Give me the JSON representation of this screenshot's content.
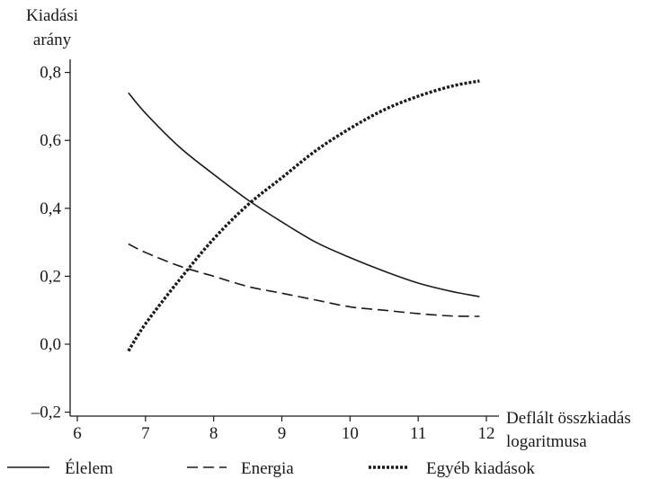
{
  "chart_data": {
    "type": "line",
    "ylabel_lines": [
      "Kiadási",
      "arány"
    ],
    "xlabel_lines": [
      "Deflált összkiadás",
      "logaritmusa"
    ],
    "xlim": [
      6,
      12
    ],
    "ylim": [
      -0.2,
      0.8
    ],
    "x_ticks": [
      6,
      7,
      8,
      9,
      10,
      11,
      12
    ],
    "x_tick_labels": [
      "6",
      "7",
      "8",
      "9",
      "10",
      "11",
      "12"
    ],
    "y_ticks": [
      -0.2,
      0.0,
      0.2,
      0.4,
      0.6,
      0.8
    ],
    "y_tick_labels": [
      "–0,2",
      "0,0",
      "0,2",
      "0,4",
      "0,6",
      "0,8"
    ],
    "grid": false,
    "legend_position": "bottom",
    "series": [
      {
        "name": "Élelem",
        "style": "solid",
        "color": "#1a1a1a",
        "x": [
          6.75,
          7.0,
          7.5,
          8.0,
          8.5,
          9.0,
          9.5,
          10.0,
          10.5,
          11.0,
          11.5,
          11.9
        ],
        "y": [
          0.74,
          0.68,
          0.58,
          0.5,
          0.425,
          0.36,
          0.3,
          0.255,
          0.215,
          0.18,
          0.155,
          0.14
        ]
      },
      {
        "name": "Energia",
        "style": "dashed",
        "color": "#1a1a1a",
        "x": [
          6.75,
          7.0,
          7.5,
          8.0,
          8.5,
          9.0,
          9.5,
          10.0,
          10.5,
          11.0,
          11.5,
          11.9
        ],
        "y": [
          0.295,
          0.27,
          0.23,
          0.2,
          0.17,
          0.15,
          0.13,
          0.11,
          0.1,
          0.09,
          0.083,
          0.082
        ]
      },
      {
        "name": "Egyéb kiadások",
        "style": "dotted",
        "color": "#1a1a1a",
        "x": [
          6.75,
          7.0,
          7.5,
          8.0,
          8.5,
          9.0,
          9.5,
          10.0,
          10.5,
          11.0,
          11.5,
          11.9
        ],
        "y": [
          -0.02,
          0.06,
          0.19,
          0.31,
          0.41,
          0.49,
          0.57,
          0.635,
          0.69,
          0.73,
          0.76,
          0.775
        ]
      }
    ]
  }
}
